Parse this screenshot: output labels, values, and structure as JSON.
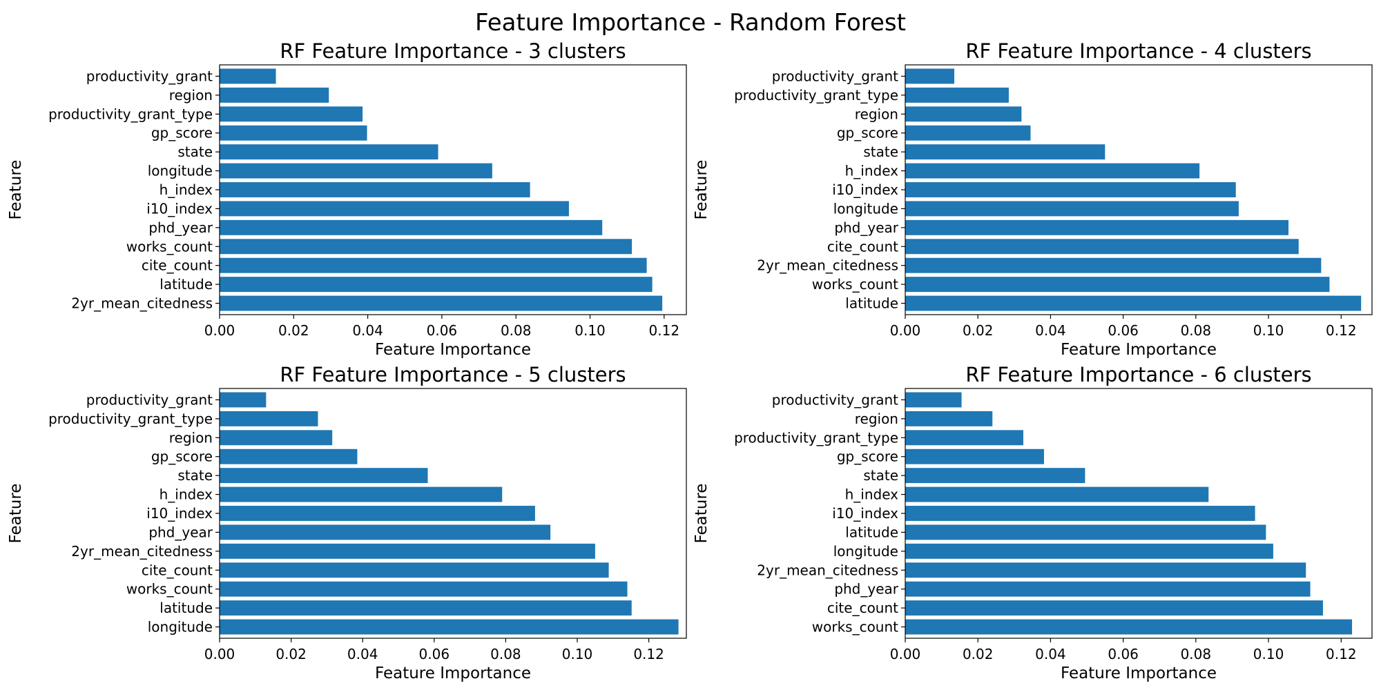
{
  "figure": {
    "title": "Feature Importance - Random Forest"
  },
  "style": {
    "bar_color": "#1f77b4"
  },
  "chart_data": [
    {
      "type": "bar",
      "orientation": "horizontal",
      "title": "RF Feature Importance - 3 clusters",
      "xlabel": "Feature Importance",
      "ylabel": "Feature",
      "xlim": [
        0,
        0.126
      ],
      "xticks": [
        0.0,
        0.02,
        0.04,
        0.06,
        0.08,
        0.1,
        0.12
      ],
      "xticklabels": [
        "0.00",
        "0.02",
        "0.04",
        "0.06",
        "0.08",
        "0.10",
        "0.12"
      ],
      "categories": [
        "2yr_mean_citedness",
        "latitude",
        "cite_count",
        "works_count",
        "phd_year",
        "i10_index",
        "h_index",
        "longitude",
        "state",
        "gp_score",
        "productivity_grant_type",
        "region",
        "productivity_grant"
      ],
      "values": [
        0.1195,
        0.1168,
        0.1153,
        0.1113,
        0.1033,
        0.0943,
        0.0838,
        0.0736,
        0.059,
        0.0398,
        0.0386,
        0.0295,
        0.0152
      ]
    },
    {
      "type": "bar",
      "orientation": "horizontal",
      "title": "RF Feature Importance - 4 clusters",
      "xlabel": "Feature Importance",
      "ylabel": "Feature",
      "xlim": [
        0,
        0.1285
      ],
      "xticks": [
        0.0,
        0.02,
        0.04,
        0.06,
        0.08,
        0.1,
        0.12
      ],
      "xticklabels": [
        "0.00",
        "0.02",
        "0.04",
        "0.06",
        "0.08",
        "0.10",
        "0.12"
      ],
      "categories": [
        "latitude",
        "works_count",
        "2yr_mean_citedness",
        "cite_count",
        "phd_year",
        "longitude",
        "i10_index",
        "h_index",
        "state",
        "gp_score",
        "region",
        "productivity_grant_type",
        "productivity_grant"
      ],
      "values": [
        0.1255,
        0.1168,
        0.1145,
        0.1083,
        0.1055,
        0.0918,
        0.091,
        0.081,
        0.055,
        0.0345,
        0.032,
        0.0285,
        0.0135
      ]
    },
    {
      "type": "bar",
      "orientation": "horizontal",
      "title": "RF Feature Importance - 5 clusters",
      "xlabel": "Feature Importance",
      "ylabel": "Feature",
      "xlim": [
        0,
        0.1305
      ],
      "xticks": [
        0.0,
        0.02,
        0.04,
        0.06,
        0.08,
        0.1,
        0.12
      ],
      "xticklabels": [
        "0.00",
        "0.02",
        "0.04",
        "0.06",
        "0.08",
        "0.10",
        "0.12"
      ],
      "categories": [
        "longitude",
        "latitude",
        "works_count",
        "cite_count",
        "2yr_mean_citedness",
        "phd_year",
        "i10_index",
        "h_index",
        "state",
        "gp_score",
        "region",
        "productivity_grant_type",
        "productivity_grant"
      ],
      "values": [
        0.1283,
        0.1152,
        0.114,
        0.1088,
        0.105,
        0.0925,
        0.0882,
        0.079,
        0.0582,
        0.0385,
        0.0315,
        0.0275,
        0.013
      ]
    },
    {
      "type": "bar",
      "orientation": "horizontal",
      "title": "RF Feature Importance - 6 clusters",
      "xlabel": "Feature Importance",
      "ylabel": "Feature",
      "xlim": [
        0,
        0.1285
      ],
      "xticks": [
        0.0,
        0.02,
        0.04,
        0.06,
        0.08,
        0.1,
        0.12
      ],
      "xticklabels": [
        "0.00",
        "0.02",
        "0.04",
        "0.06",
        "0.08",
        "0.10",
        "0.12"
      ],
      "categories": [
        "works_count",
        "cite_count",
        "phd_year",
        "2yr_mean_citedness",
        "longitude",
        "latitude",
        "i10_index",
        "h_index",
        "state",
        "gp_score",
        "productivity_grant_type",
        "region",
        "productivity_grant"
      ],
      "values": [
        0.123,
        0.115,
        0.1115,
        0.1103,
        0.1013,
        0.0993,
        0.0963,
        0.0835,
        0.0495,
        0.0382,
        0.0325,
        0.024,
        0.0155
      ]
    }
  ]
}
